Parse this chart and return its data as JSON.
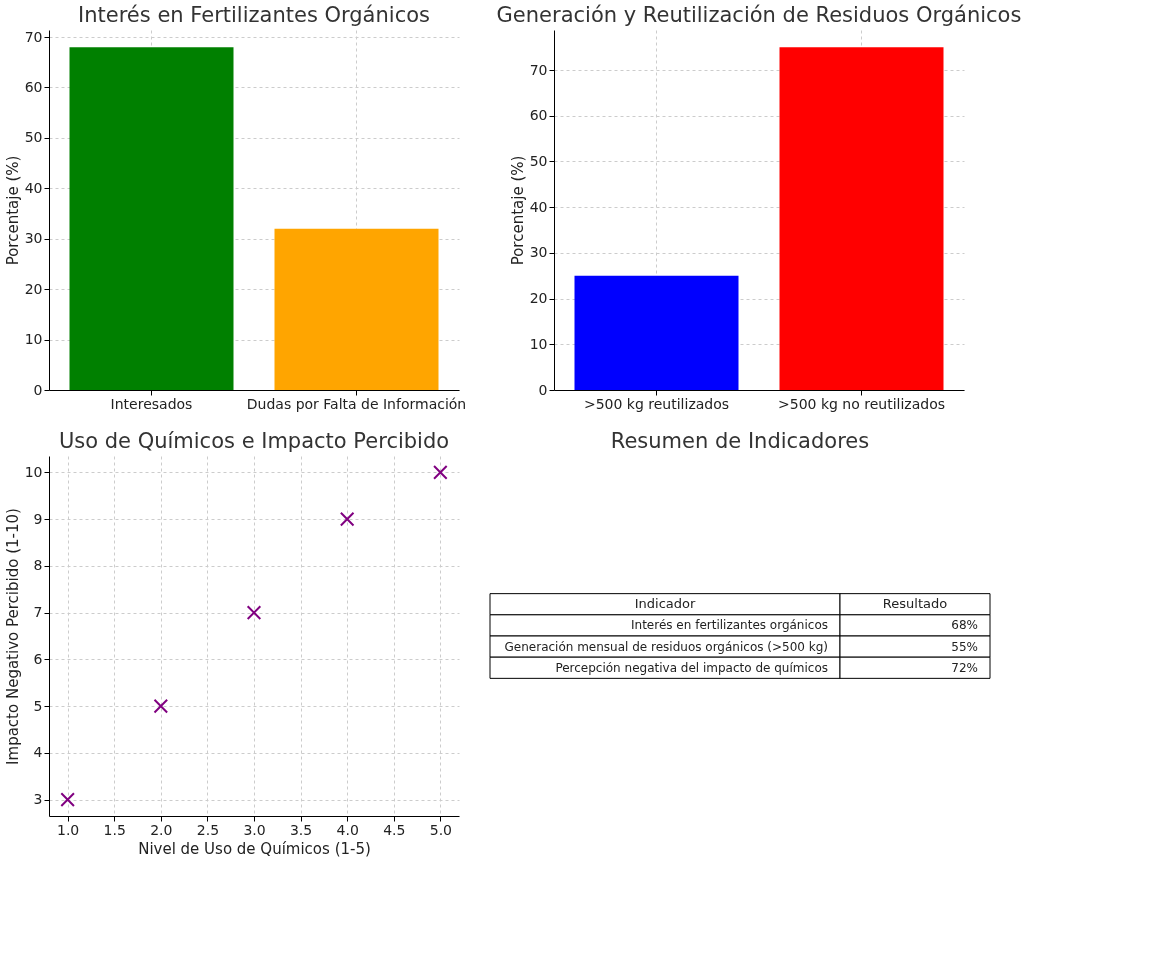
{
  "chart_data": [
    {
      "type": "bar",
      "title": "Interés en Fertilizantes Orgánicos",
      "ylabel": "Porcentaje (%)",
      "categories": [
        "Interesados",
        "Dudas por Falta de Información"
      ],
      "values": [
        68,
        32
      ],
      "colors": [
        "#008000",
        "#ffa500"
      ],
      "ylim": [
        0,
        71.4
      ],
      "yticks": [
        0,
        10,
        20,
        30,
        40,
        50,
        60,
        70
      ],
      "grid": true
    },
    {
      "type": "bar",
      "title": "Generación y Reutilización de Residuos Orgánicos",
      "ylabel": "Porcentaje (%)",
      "categories": [
        ">500 kg reutilizados",
        ">500 kg no reutilizados"
      ],
      "values": [
        25,
        75
      ],
      "colors": [
        "#0000ff",
        "#ff0000"
      ],
      "ylim": [
        0,
        78.75
      ],
      "yticks": [
        0,
        10,
        20,
        30,
        40,
        50,
        60,
        70
      ],
      "grid": true
    },
    {
      "type": "scatter",
      "title": "Uso de Químicos e Impacto Percibido",
      "xlabel": "Nivel de Uso de Químicos (1-5)",
      "ylabel": "Impacto Negativo Percibido (1-10)",
      "x": [
        1,
        2,
        3,
        4,
        5
      ],
      "series": [
        {
          "color": "#800080",
          "values": [
            3,
            5,
            7,
            9,
            10
          ]
        }
      ],
      "marker": "cross",
      "xlim": [
        0.8,
        5.2
      ],
      "ylim": [
        2.65,
        10.35
      ],
      "xticks": [
        {
          "value": 1,
          "label": "1.0"
        },
        {
          "value": 1.5,
          "label": "1.5"
        },
        {
          "value": 2,
          "label": "2.0"
        },
        {
          "value": 2.5,
          "label": "2.5"
        },
        {
          "value": 3,
          "label": "3.0"
        },
        {
          "value": 3.5,
          "label": "3.5"
        },
        {
          "value": 4,
          "label": "4.0"
        },
        {
          "value": 4.5,
          "label": "4.5"
        },
        {
          "value": 5,
          "label": "5.0"
        }
      ],
      "yticks": [
        3,
        4,
        5,
        6,
        7,
        8,
        9,
        10
      ],
      "grid": true
    },
    {
      "type": "other",
      "title": "Resumen de Indicadores",
      "annotations": [
        "Indicador",
        "Resultado",
        "Interés en fertilizantes orgánicos",
        "68%",
        "Generación mensual de residuos orgánicos (>500 kg)",
        "55%",
        "Percepción negativa del impacto de químicos",
        "72%"
      ]
    }
  ]
}
